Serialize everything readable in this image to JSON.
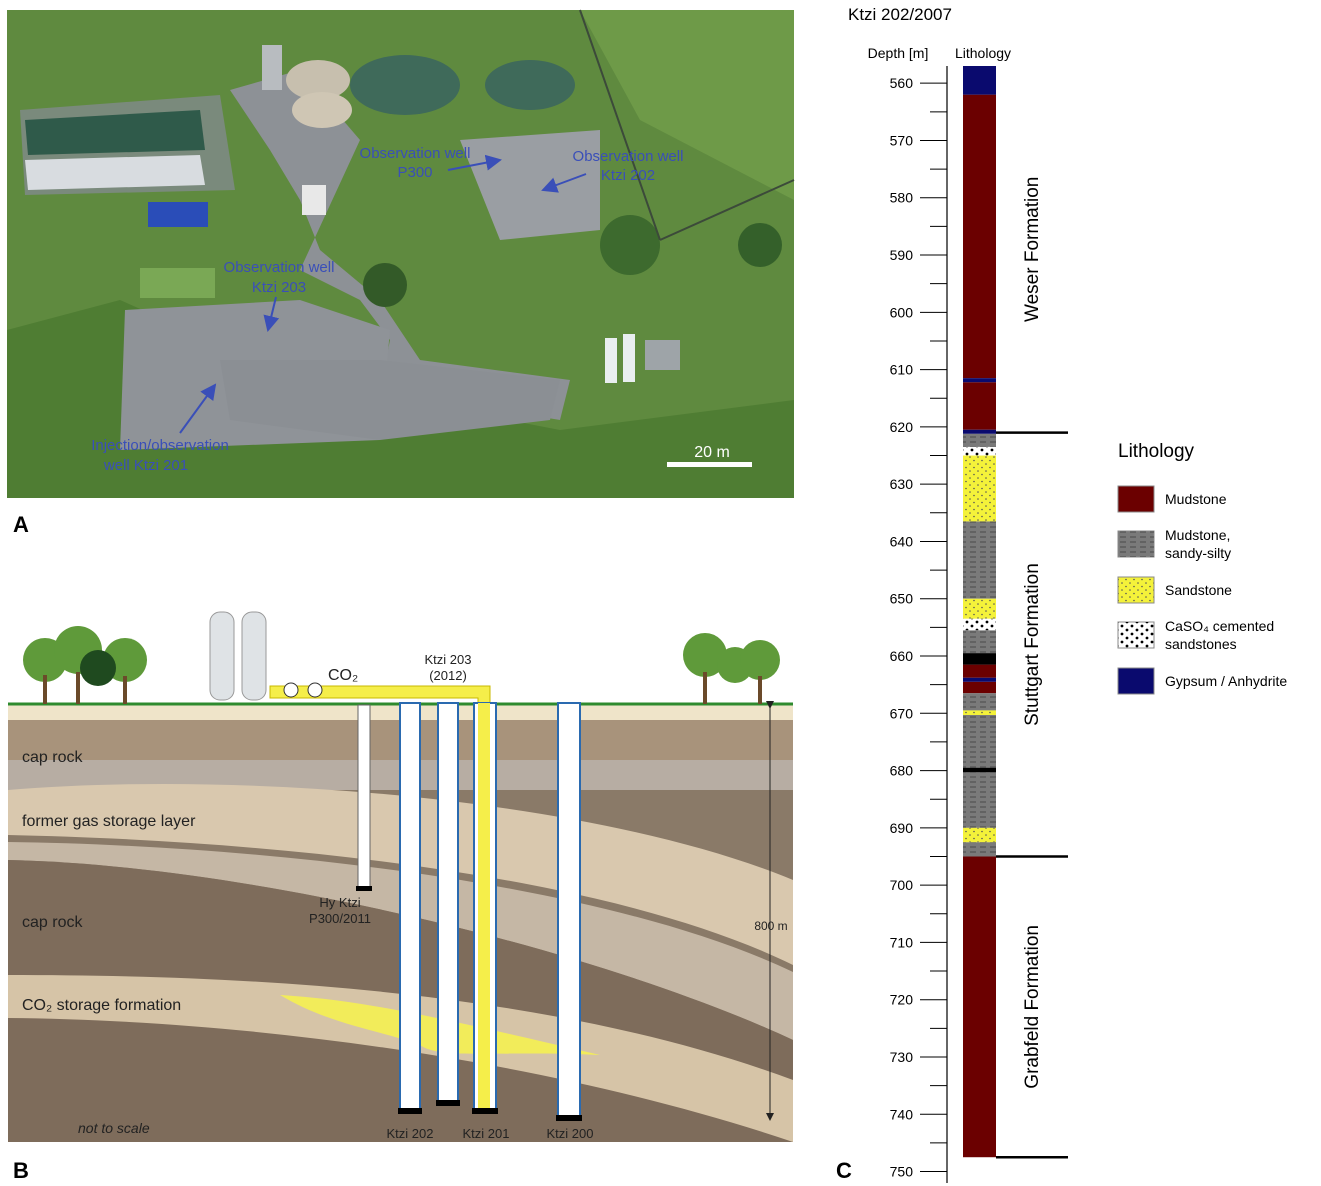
{
  "panel_a": {
    "label": "A",
    "annotations": [
      {
        "lines": [
          "Observation well",
          "P300"
        ]
      },
      {
        "lines": [
          "Observation well",
          "Ktzi 202"
        ]
      },
      {
        "lines": [
          "Observation well",
          "Ktzi 203"
        ]
      },
      {
        "lines": [
          "Injection/observation",
          "well Ktzi 201"
        ]
      }
    ],
    "scale_bar": "20 m"
  },
  "panel_b": {
    "label": "B",
    "layers": [
      "cap rock",
      "former gas storage layer",
      "cap rock",
      "CO₂ storage formation"
    ],
    "note": "not to scale",
    "gas": "CO₂",
    "well_203": [
      "Ktzi 203",
      "(2012)"
    ],
    "well_p300": [
      "Hy Ktzi",
      "P300/2011"
    ],
    "depth": "800 m",
    "wells": [
      "Ktzi 202",
      "Ktzi 201",
      "Ktzi 200"
    ]
  },
  "panel_c": {
    "label": "C",
    "title": "Ktzi 202/2007",
    "depth_label": "Depth [m]",
    "lithology_label": "Lithology",
    "ylim": [
      557,
      752
    ],
    "yticks": [
      560,
      570,
      580,
      590,
      600,
      610,
      620,
      630,
      640,
      650,
      660,
      670,
      680,
      690,
      700,
      710,
      720,
      730,
      740,
      750
    ],
    "minor_yticks": [
      565,
      575,
      585,
      595,
      605,
      615,
      625,
      635,
      645,
      655,
      665,
      675,
      685,
      695,
      705,
      715,
      725,
      735,
      745
    ],
    "legend_title": "Lithology",
    "lithology": [
      {
        "label": [
          "Mudstone"
        ],
        "color": "#6b0000",
        "pattern": "none",
        "intervals": [
          [
            562,
            611.5
          ],
          [
            612.2,
            620.5
          ],
          [
            661.5,
            663.8
          ],
          [
            664.5,
            666.5
          ],
          [
            695,
            747.5
          ]
        ]
      },
      {
        "label": [
          "Mudstone,",
          "sandy-silty"
        ],
        "color": "#7a7a7a",
        "pattern": "dashes",
        "intervals": [
          [
            621.2,
            623.5
          ],
          [
            636.5,
            650
          ],
          [
            655.5,
            659.5
          ],
          [
            666.5,
            669.5
          ],
          [
            670.3,
            679.5
          ],
          [
            680.3,
            690
          ],
          [
            692.5,
            695
          ]
        ]
      },
      {
        "label": [
          "Sandstone"
        ],
        "color": "#f4f23a",
        "pattern": "dots",
        "intervals": [
          [
            625,
            636.5
          ],
          [
            650,
            653.5
          ],
          [
            669.5,
            670.3
          ],
          [
            690,
            692.5
          ]
        ]
      },
      {
        "label": [
          "CaSO₄ cemented",
          "sandstones"
        ],
        "color": "#ffffff",
        "pattern": "bigdots",
        "intervals": [
          [
            623.5,
            625
          ],
          [
            653.5,
            655.5
          ]
        ]
      },
      {
        "label": [
          "Gypsum / Anhydrite"
        ],
        "color": "#0a0a6e",
        "pattern": "none",
        "intervals": [
          [
            557,
            562
          ],
          [
            611.5,
            612.2
          ],
          [
            620.5,
            621.2
          ],
          [
            663.8,
            664.5
          ]
        ]
      },
      {
        "color": "#000000",
        "pattern": "none",
        "intervals": [
          [
            659.5,
            661.5
          ],
          [
            679.5,
            680.3
          ]
        ]
      }
    ],
    "formations": [
      {
        "name": "Weser Formation",
        "top": 557,
        "bottom": 621
      },
      {
        "name": "Stuttgart Formation",
        "top": 621,
        "bottom": 695
      },
      {
        "name": "Grabfeld Formation",
        "top": 695,
        "bottom": 747.5
      }
    ]
  }
}
